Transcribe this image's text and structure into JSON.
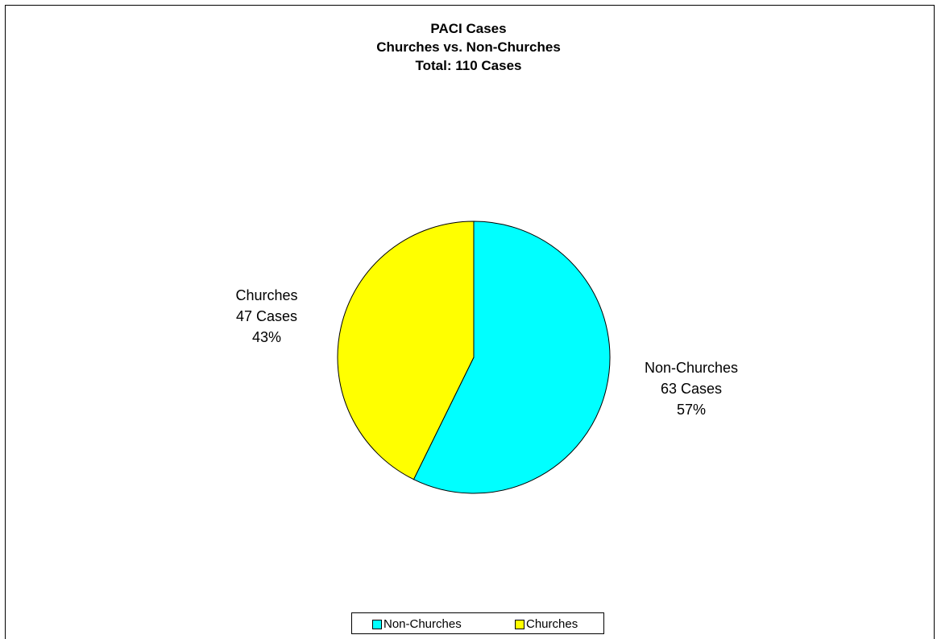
{
  "chart_data": {
    "type": "pie",
    "title_lines": [
      "PACI Cases",
      "Churches vs. Non-Churches",
      "Total:  110 Cases"
    ],
    "slices": [
      {
        "name": "Non-Churches",
        "value": 63,
        "count_label": "63 Cases",
        "percent_label": "57%",
        "color": "#00FFFF"
      },
      {
        "name": "Churches",
        "value": 47,
        "count_label": "47 Cases",
        "percent_label": "43%",
        "color": "#FFFF00"
      }
    ],
    "total": 110,
    "legend": {
      "placement": "bottom",
      "entries": [
        "Non-Churches",
        "Churches"
      ]
    }
  }
}
